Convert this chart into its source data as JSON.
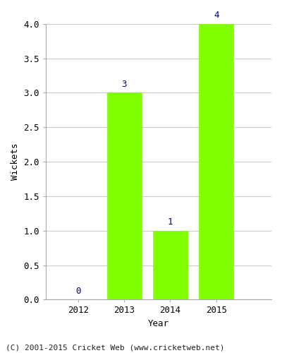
{
  "years": [
    2012,
    2013,
    2014,
    2015
  ],
  "values": [
    0,
    3,
    1,
    4
  ],
  "bar_color": "#7fff00",
  "bar_edge_color": "#7fff00",
  "xlabel": "Year",
  "ylabel": "Wickets",
  "ylim": [
    0,
    4.0
  ],
  "yticks": [
    0.0,
    0.5,
    1.0,
    1.5,
    2.0,
    2.5,
    3.0,
    3.5,
    4.0
  ],
  "annotation_color": "#00008b",
  "annotation_fontsize": 9,
  "grid_color": "#cccccc",
  "footer": "(C) 2001-2015 Cricket Web (www.cricketweb.net)",
  "footer_fontsize": 8,
  "bar_width": 0.75,
  "xlim": [
    2011.3,
    2016.2
  ]
}
